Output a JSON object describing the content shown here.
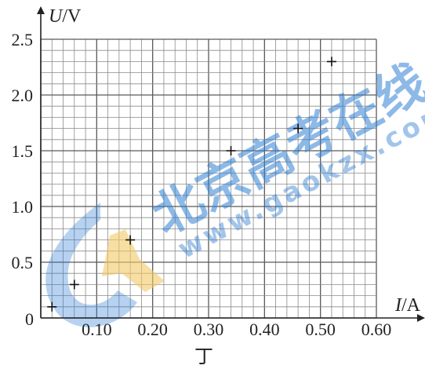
{
  "chart_data": {
    "type": "scatter",
    "caption": "丁",
    "xlabel_var": "I",
    "xlabel_unit": "/A",
    "ylabel_var": "U",
    "ylabel_unit": "/V",
    "xlim": [
      0,
      0.6
    ],
    "ylim": [
      0,
      2.5
    ],
    "grid": true,
    "x_ticks": [
      0.1,
      0.2,
      0.3,
      0.4,
      0.5,
      0.6
    ],
    "x_tick_labels": [
      "0.10",
      "0.20",
      "0.30",
      "0.40",
      "0.50",
      "0.60"
    ],
    "y_ticks": [
      0.5,
      1.0,
      1.5,
      2.0,
      2.5
    ],
    "y_tick_labels": [
      "0.5",
      "1.0",
      "1.5",
      "2.0",
      "2.5"
    ],
    "origin_label": "0",
    "marker": "+",
    "points": [
      {
        "x": 0.02,
        "y": 0.1
      },
      {
        "x": 0.06,
        "y": 0.3
      },
      {
        "x": 0.16,
        "y": 0.7
      },
      {
        "x": 0.34,
        "y": 1.5
      },
      {
        "x": 0.46,
        "y": 1.7
      },
      {
        "x": 0.52,
        "y": 2.3
      }
    ]
  },
  "watermark": {
    "text_cn": "北京高考在线",
    "text_url": "www.gaokzx.com",
    "color": "#2f7fd3",
    "accent": "#f2c865"
  }
}
